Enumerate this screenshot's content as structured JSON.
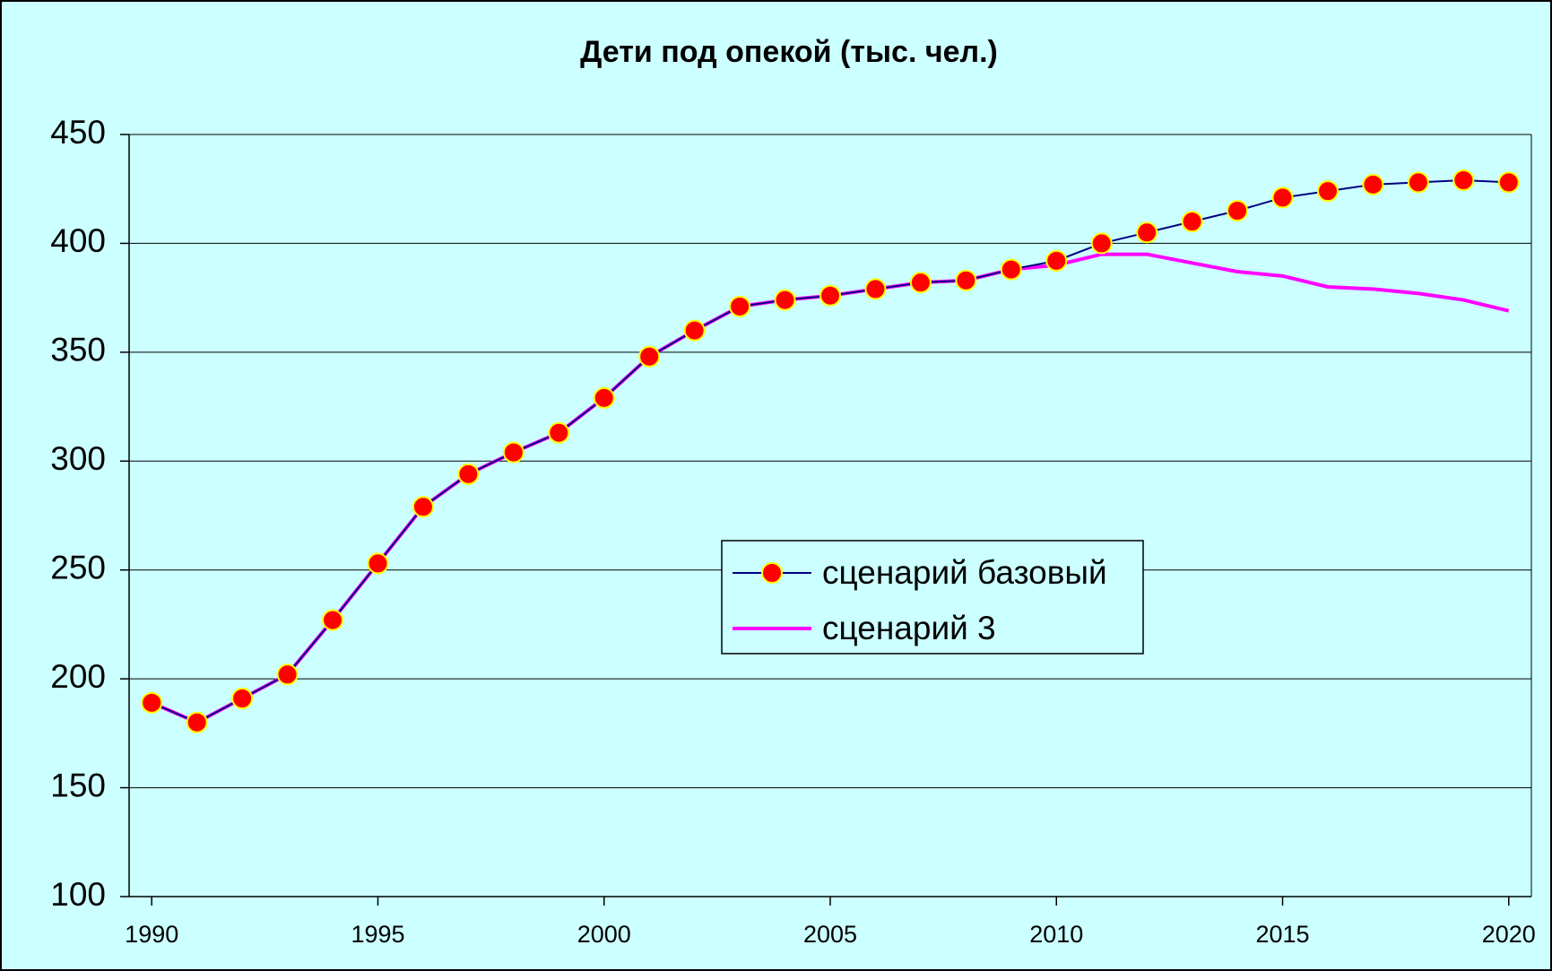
{
  "chart_data": {
    "type": "line",
    "title": "Дети под опекой (тыс. чел.)",
    "x": [
      1990,
      1991,
      1992,
      1993,
      1994,
      1995,
      1996,
      1997,
      1998,
      1999,
      2000,
      2001,
      2002,
      2003,
      2004,
      2005,
      2006,
      2007,
      2008,
      2009,
      2010,
      2011,
      2012,
      2013,
      2014,
      2015,
      2016,
      2017,
      2018,
      2019,
      2020
    ],
    "series": [
      {
        "name": "сценарий базовый",
        "color": "#000080",
        "marker_color": "#ff0000",
        "marker_edge": "#ffff00",
        "values": [
          189,
          180,
          191,
          202,
          227,
          253,
          279,
          294,
          304,
          313,
          329,
          348,
          360,
          371,
          374,
          376,
          379,
          382,
          383,
          388,
          392,
          400,
          405,
          410,
          415,
          421,
          424,
          427,
          428,
          429,
          428
        ]
      },
      {
        "name": "сценарий 3",
        "color": "#ff00ff",
        "values": [
          189,
          180,
          191,
          202,
          227,
          253,
          279,
          294,
          304,
          313,
          329,
          348,
          360,
          371,
          374,
          376,
          379,
          382,
          383,
          388,
          390,
          395,
          395,
          391,
          387,
          385,
          380,
          379,
          377,
          374,
          369
        ]
      }
    ],
    "xlim": [
      1989.5,
      2020.5
    ],
    "xticks": [
      1990,
      1995,
      2000,
      2005,
      2010,
      2015,
      2020
    ],
    "ylim": [
      100,
      450
    ],
    "yticks": [
      100,
      150,
      200,
      250,
      300,
      350,
      400,
      450
    ],
    "grid": true,
    "legend": "center"
  }
}
